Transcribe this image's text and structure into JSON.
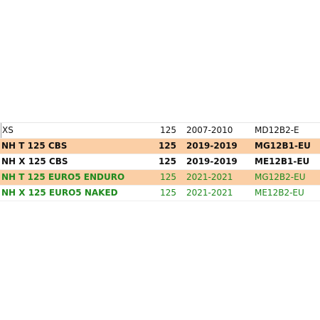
{
  "table": {
    "rows": [
      [
        "XS",
        "125",
        "2007-2010",
        "MD12B2-E"
      ],
      [
        "NH T 125 CBS",
        "125",
        "2019-2019",
        "MG12B1-EU"
      ],
      [
        "NH X 125 CBS",
        "125",
        "2019-2019",
        "ME12B1-EU"
      ],
      [
        "NH T 125 EURO5 ENDURO",
        "125",
        "2021-2021",
        "MG12B2-EU"
      ],
      [
        "NH X 125 EURO5 NAKED",
        "125",
        "2021-2021",
        "ME12B2-EU"
      ]
    ]
  }
}
